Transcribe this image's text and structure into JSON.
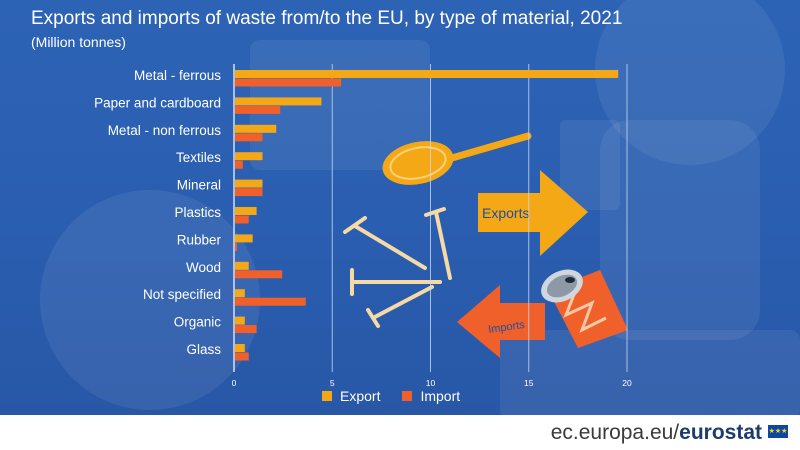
{
  "header": {
    "title": "Exports and imports of waste from/to the EU, by type of material, 2021",
    "subtitle": "(Million tonnes)"
  },
  "legend": {
    "export_label": "Export",
    "import_label": "Import"
  },
  "illustration": {
    "exports_label": "Exports",
    "imports_label": "Imports"
  },
  "footer": {
    "site": "ec.europa.eu/",
    "brand": "eurostat"
  },
  "colors": {
    "export": "#f5a815",
    "import": "#f0602a",
    "background": "#2b5eb0",
    "gridline": "#c9d7ee"
  },
  "chart_data": {
    "type": "bar",
    "orientation": "horizontal",
    "categories": [
      "Metal - ferrous",
      "Paper and cardboard",
      "Metal - non ferrous",
      "Textiles",
      "Mineral",
      "Plastics",
      "Rubber",
      "Wood",
      "Not specified",
      "Organic",
      "Glass"
    ],
    "series": [
      {
        "name": "Export",
        "values": [
          19.5,
          4.4,
          2.1,
          1.4,
          1.4,
          1.1,
          0.9,
          0.7,
          0.5,
          0.5,
          0.5
        ]
      },
      {
        "name": "Import",
        "values": [
          5.4,
          2.3,
          1.4,
          0.4,
          1.4,
          0.7,
          0.1,
          2.4,
          3.6,
          1.1,
          0.7
        ]
      }
    ],
    "xlim": [
      0,
      20
    ],
    "xticks": [
      0,
      5,
      10,
      15,
      20
    ],
    "grid": true,
    "legend_position": "bottom"
  }
}
